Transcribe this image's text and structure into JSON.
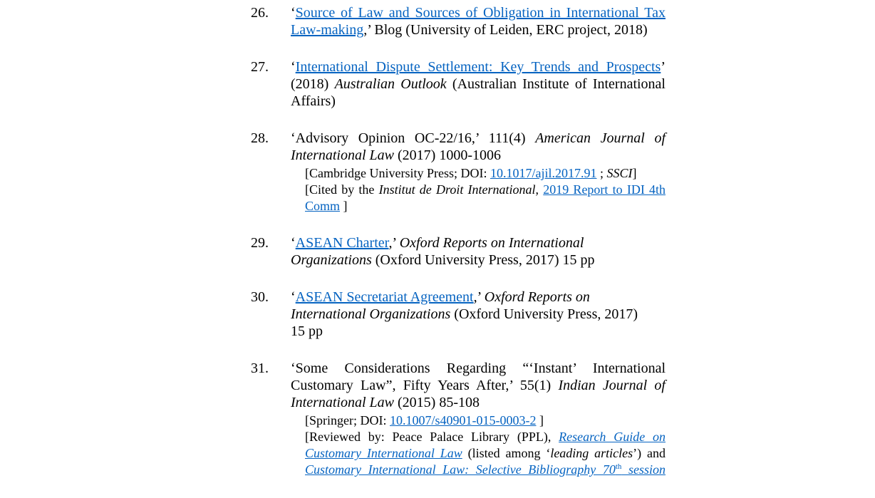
{
  "colors": {
    "link": "#0563c1",
    "text": "#000000"
  },
  "entries": [
    {
      "number": "26.",
      "lines": [
        {
          "j": true,
          "segs": [
            {
              "t": "‘"
            },
            {
              "t": "Source of Law and Sources of Obligation in International Tax",
              "s": "a"
            }
          ]
        },
        {
          "segs": [
            {
              "t": "Law-making",
              "s": "a"
            },
            {
              "t": ",’ Blog (University of Leiden, ERC project, 2018)"
            }
          ]
        }
      ]
    },
    {
      "number": "27.",
      "lines": [
        {
          "j": true,
          "segs": [
            {
              "t": "‘"
            },
            {
              "t": "International Dispute Settlement: Key Trends and Prospects",
              "s": "a"
            },
            {
              "t": "’"
            }
          ]
        },
        {
          "j": true,
          "segs": [
            {
              "t": "(2018) "
            },
            {
              "t": "Australian Outlook",
              "s": "i"
            },
            {
              "t": " (Australian Institute of International"
            }
          ]
        },
        {
          "segs": [
            {
              "t": "Affairs)"
            }
          ]
        }
      ]
    },
    {
      "number": "28.",
      "lines": [
        {
          "j": true,
          "segs": [
            {
              "t": "‘Advisory Opinion OC-22/16,’ 111(4) "
            },
            {
              "t": "American Journal of",
              "s": "i"
            }
          ]
        },
        {
          "segs": [
            {
              "t": "International Law",
              "s": "i"
            },
            {
              "t": " (2017) 1000-1006"
            }
          ]
        },
        {
          "sub": true,
          "segs": [
            {
              "t": "[Cambridge University Press; DOI: "
            },
            {
              "t": "10.1017/ajil.2017.91",
              "s": "a"
            },
            {
              "t": " ; "
            },
            {
              "t": "SSCI",
              "s": "i"
            },
            {
              "t": "]"
            }
          ]
        },
        {
          "sub": true,
          "j": true,
          "segs": [
            {
              "t": "[Cited by the "
            },
            {
              "t": "Institut de Droit International",
              "s": "i"
            },
            {
              "t": ", "
            },
            {
              "t": "2019 Report to IDI 4th",
              "s": "a"
            }
          ]
        },
        {
          "sub": true,
          "segs": [
            {
              "t": "Comm",
              "s": "a"
            },
            {
              "t": " ]"
            }
          ]
        }
      ]
    },
    {
      "number": "29.",
      "lines": [
        {
          "segs": [
            {
              "t": "‘"
            },
            {
              "t": "ASEAN Charter",
              "s": "a"
            },
            {
              "t": ",’ "
            },
            {
              "t": "Oxford Reports on International",
              "s": "i"
            }
          ]
        },
        {
          "segs": [
            {
              "t": "Organizations",
              "s": "i"
            },
            {
              "t": " (Oxford University Press, 2017) 15 pp"
            }
          ]
        }
      ]
    },
    {
      "number": "30.",
      "lines": [
        {
          "segs": [
            {
              "t": "‘"
            },
            {
              "t": "ASEAN Secretariat Agreement",
              "s": "a"
            },
            {
              "t": ",’ "
            },
            {
              "t": "Oxford Reports on",
              "s": "i"
            }
          ]
        },
        {
          "segs": [
            {
              "t": "International Organizations",
              "s": "i"
            },
            {
              "t": " (Oxford University Press, 2017)"
            }
          ]
        },
        {
          "segs": [
            {
              "t": "15 pp"
            }
          ]
        }
      ]
    },
    {
      "number": "31.",
      "lines": [
        {
          "j": true,
          "segs": [
            {
              "t": "‘Some Considerations Regarding “‘Instant’ International"
            }
          ]
        },
        {
          "j": true,
          "segs": [
            {
              "t": "Customary Law”, Fifty Years After,’ 55(1) "
            },
            {
              "t": "Indian Journal of",
              "s": "i"
            }
          ]
        },
        {
          "segs": [
            {
              "t": "International Law",
              "s": "i"
            },
            {
              "t": " (2015) 85-108"
            }
          ]
        },
        {
          "sub": true,
          "segs": [
            {
              "t": "[Springer; DOI: "
            },
            {
              "t": "10.1007/s40901-015-0003-2",
              "s": "a"
            },
            {
              "t": " ]"
            }
          ]
        },
        {
          "sub": true,
          "j": true,
          "segs": [
            {
              "t": "[Reviewed by: Peace Palace Library (PPL), "
            },
            {
              "t": "Research Guide on",
              "s": "ai"
            }
          ]
        },
        {
          "sub": true,
          "j": true,
          "segs": [
            {
              "t": "Customary International Law",
              "s": "ai"
            },
            {
              "t": " (listed among ‘"
            },
            {
              "t": "leading articles",
              "s": "i"
            },
            {
              "t": "’) and"
            }
          ]
        },
        {
          "sub": true,
          "j": true,
          "segs": [
            {
              "t": "Customary International Law: Selective Bibliography 70",
              "s": "ai"
            },
            {
              "t": "th",
              "s": "asup"
            },
            {
              "t": " session",
              "s": "ai"
            }
          ]
        }
      ]
    }
  ]
}
